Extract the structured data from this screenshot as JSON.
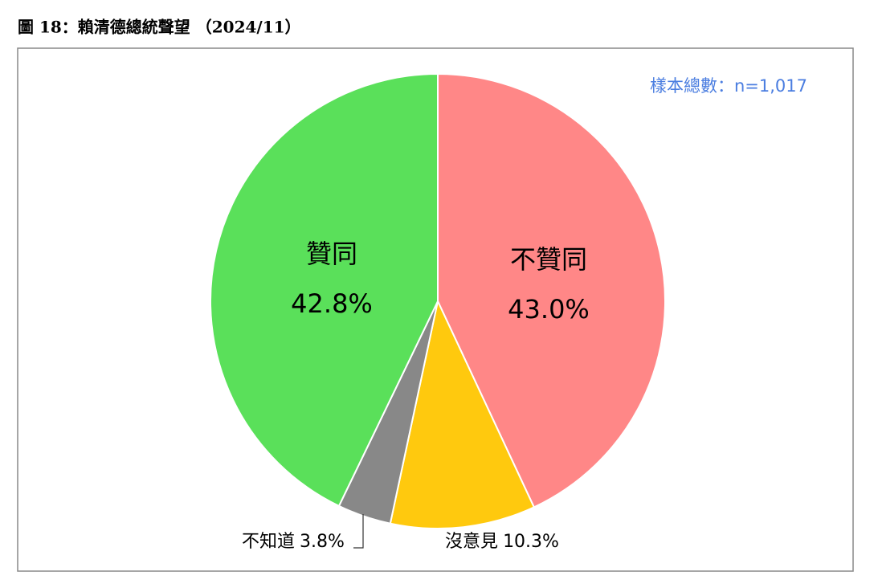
{
  "chart_data": {
    "type": "pie",
    "title": "圖 18：賴清德總統聲望 （2024/11）",
    "annotation": "樣本總數：n=1,017",
    "categories": [
      "不贊同",
      "沒意見",
      "不知道",
      "贊同"
    ],
    "values": [
      43.0,
      10.3,
      3.8,
      42.8
    ],
    "value_labels": [
      "43.0%",
      "10.3%",
      "3.8%",
      "42.8%"
    ],
    "colors": [
      "#ff8787",
      "#ffc90e",
      "#888888",
      "#5ae05a"
    ]
  }
}
